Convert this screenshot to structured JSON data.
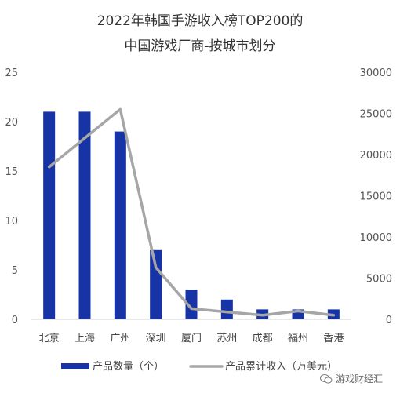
{
  "chart_data": {
    "type": "bar",
    "title": "2022年韩国手游收入榜TOP200的",
    "subtitle": "中国游戏厂商-按城市划分",
    "categories": [
      "北京",
      "上海",
      "广州",
      "深圳",
      "厦门",
      "苏州",
      "成都",
      "福州",
      "香港"
    ],
    "series": [
      {
        "name": "产品数量（个）",
        "type": "bar",
        "axis": "left",
        "color": "#1634a6",
        "values": [
          21,
          21,
          19,
          7,
          3,
          2,
          1,
          1,
          1
        ]
      },
      {
        "name": "产品累计收入（万美元）",
        "type": "line",
        "axis": "right",
        "color": "#a6a6a6",
        "values": [
          18500,
          22000,
          25500,
          6300,
          1300,
          900,
          500,
          1000,
          500
        ]
      }
    ],
    "y_left": {
      "min": 0,
      "max": 25,
      "ticks": [
        0,
        5,
        10,
        15,
        20,
        25
      ]
    },
    "y_right": {
      "min": 0,
      "max": 30000,
      "ticks": [
        0,
        5000,
        10000,
        15000,
        20000,
        25000,
        30000
      ]
    },
    "grid": false,
    "legend_position": "bottom"
  },
  "watermark": {
    "text": "游戏财经汇",
    "icon": "wechat-icon"
  }
}
